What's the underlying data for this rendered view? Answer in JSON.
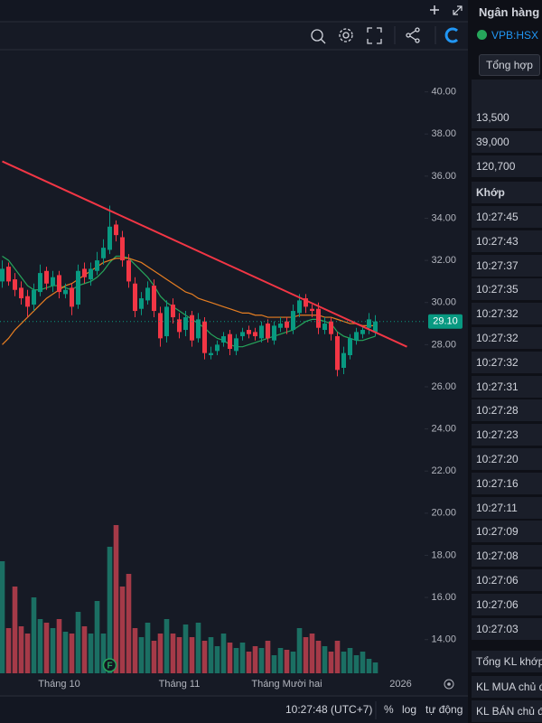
{
  "chart_data": {
    "type": "candlestick",
    "categories": [
      null,
      null,
      null,
      null,
      null,
      null,
      null,
      null,
      null,
      "Tháng 10",
      null,
      null,
      null,
      null,
      null,
      null,
      null,
      null,
      null,
      null,
      null,
      null,
      null,
      null,
      null,
      null,
      null,
      null,
      "Tháng 11",
      null,
      null,
      null,
      null,
      null,
      null,
      null,
      null,
      null,
      null,
      null,
      null,
      null,
      null,
      null,
      null,
      "Tháng Mười hai",
      null,
      null,
      null,
      null,
      null,
      null,
      null,
      null,
      null,
      null,
      null,
      null,
      null,
      null,
      null,
      null,
      null,
      "2026",
      null,
      null
    ],
    "open": [
      31.0,
      31.7,
      31.1,
      30.7,
      30.3,
      29.9,
      30.5,
      31.5,
      30.8,
      31.3,
      30.4,
      30.7,
      29.9,
      31.6,
      31.1,
      31.5,
      32.1,
      32.5,
      33.7,
      33.1,
      32.0,
      30.9,
      29.7,
      30.1,
      30.8,
      29.5,
      28.4,
      29.9,
      29.2,
      28.7,
      29.4,
      28.3,
      29.1,
      27.5,
      27.7,
      28.1,
      28.5,
      27.7,
      28.4,
      28.7,
      28.6,
      28.3,
      29.0,
      28.2,
      28.8,
      29.1,
      28.7,
      29.5,
      30.2,
      29.7,
      29.7,
      28.7,
      29.1,
      28.4,
      26.9,
      27.5,
      28.2,
      28.5,
      28.8,
      28.6,
      null,
      null,
      null,
      null,
      null,
      null
    ],
    "high": [
      32.0,
      31.9,
      31.4,
      31.0,
      30.6,
      30.9,
      31.8,
      31.7,
      31.5,
      31.5,
      30.9,
      30.9,
      31.8,
      31.9,
      31.9,
      32.4,
      33.0,
      34.6,
      33.9,
      33.4,
      32.3,
      31.2,
      30.5,
      31.0,
      31.1,
      29.8,
      30.1,
      30.2,
      29.5,
      29.6,
      29.6,
      29.5,
      29.3,
      27.9,
      28.2,
      28.6,
      28.7,
      28.5,
      28.8,
      28.9,
      28.8,
      29.1,
      29.2,
      29.1,
      29.3,
      29.3,
      29.9,
      30.4,
      30.4,
      29.9,
      30.0,
      29.3,
      29.3,
      28.6,
      27.9,
      28.5,
      28.8,
      28.9,
      29.5,
      29.4,
      null,
      null,
      null,
      null,
      null,
      null
    ],
    "low": [
      30.7,
      30.8,
      30.3,
      29.9,
      29.3,
      29.6,
      30.3,
      30.6,
      30.5,
      30.2,
      30.2,
      29.4,
      29.7,
      30.9,
      30.8,
      31.3,
      31.8,
      32.3,
      32.9,
      31.7,
      30.7,
      29.3,
      29.4,
      29.9,
      29.3,
      27.9,
      28.1,
      29.0,
      28.3,
      28.4,
      27.9,
      28.1,
      27.3,
      27.3,
      27.5,
      27.9,
      27.5,
      27.5,
      28.2,
      28.3,
      28.2,
      28.1,
      28.1,
      28.0,
      28.6,
      28.5,
      28.5,
      29.3,
      29.5,
      29.3,
      28.5,
      28.5,
      28.2,
      26.5,
      26.6,
      27.3,
      28.0,
      28.3,
      28.5,
      28.4,
      null,
      null,
      null,
      null,
      null,
      null
    ],
    "close": [
      31.6,
      31.0,
      30.6,
      30.2,
      29.8,
      30.6,
      31.4,
      30.9,
      31.2,
      30.5,
      30.6,
      29.8,
      31.5,
      31.2,
      31.6,
      32.0,
      32.6,
      33.6,
      33.2,
      32.0,
      31.0,
      29.6,
      30.2,
      30.7,
      29.6,
      28.3,
      29.8,
      29.3,
      28.6,
      29.3,
      28.2,
      29.2,
      27.6,
      27.6,
      28.0,
      28.4,
      27.8,
      28.3,
      28.6,
      28.5,
      28.4,
      28.9,
      28.3,
      28.9,
      29.0,
      28.8,
      29.6,
      30.1,
      29.8,
      29.6,
      28.8,
      29.0,
      28.5,
      26.8,
      27.6,
      28.3,
      28.6,
      28.7,
      29.2,
      29.1,
      null,
      null,
      null,
      null,
      null,
      null
    ],
    "volume": [
      62,
      25,
      48,
      26,
      22,
      42,
      30,
      28,
      25,
      30,
      23,
      22,
      34,
      26,
      22,
      40,
      22,
      70,
      82,
      48,
      55,
      25,
      20,
      28,
      18,
      22,
      30,
      22,
      20,
      27,
      20,
      28,
      18,
      20,
      15,
      22,
      17,
      14,
      17,
      12,
      15,
      14,
      18,
      10,
      14,
      13,
      12,
      25,
      20,
      22,
      18,
      15,
      12,
      18,
      12,
      14,
      10,
      12,
      8,
      6,
      null,
      null,
      null,
      null,
      null,
      null
    ],
    "volume_lim": [
      0,
      100
    ],
    "up_color": "#089981",
    "down_color": "#f23645",
    "volume_up_color": "#1b6f63",
    "volume_down_color": "#a53a48",
    "lines": [
      {
        "color": "#26a65b",
        "values": [
          32.2,
          32.0,
          31.6,
          31.2,
          30.8,
          30.6,
          30.6,
          30.7,
          30.8,
          30.8,
          30.7,
          30.6,
          30.8,
          30.9,
          31.0,
          31.2,
          31.5,
          31.9,
          32.2,
          32.2,
          32.1,
          31.8,
          31.5,
          31.2,
          30.8,
          30.3,
          30.0,
          29.8,
          29.6,
          29.4,
          29.2,
          29.0,
          28.8,
          28.5,
          28.3,
          28.2,
          28.0,
          27.9,
          27.9,
          28.0,
          28.1,
          28.2,
          28.3,
          28.4,
          28.5,
          28.6,
          28.7,
          28.9,
          29.1,
          29.2,
          29.2,
          29.1,
          29.0,
          28.6,
          28.4,
          28.3,
          28.2,
          28.2,
          28.3,
          28.4,
          null,
          null,
          null,
          null,
          null,
          null
        ]
      },
      {
        "color": "#e67e22",
        "values": [
          28.0,
          28.3,
          28.7,
          29.0,
          29.3,
          29.6,
          29.9,
          30.2,
          30.4,
          30.6,
          30.8,
          30.9,
          31.1,
          31.3,
          31.5,
          31.7,
          31.9,
          32.0,
          32.1,
          32.1,
          32.1,
          32.0,
          31.9,
          31.7,
          31.5,
          31.3,
          31.1,
          30.9,
          30.7,
          30.5,
          30.4,
          30.2,
          30.1,
          30.0,
          29.9,
          29.8,
          29.7,
          29.6,
          29.5,
          29.5,
          29.4,
          29.4,
          29.3,
          29.3,
          29.3,
          29.3,
          29.3,
          29.4,
          29.4,
          29.4,
          29.4,
          29.3,
          29.3,
          29.2,
          29.1,
          29.0,
          29.0,
          28.9,
          28.9,
          28.9,
          null,
          null,
          null,
          null,
          null,
          null
        ]
      }
    ],
    "trendline": {
      "color": "#f23645",
      "x": [
        0,
        64
      ],
      "values": [
        36.7,
        27.9
      ]
    },
    "last_price": {
      "value": 29.1,
      "label": "29.10"
    },
    "markers": [
      {
        "index": 17,
        "label": "F"
      }
    ],
    "ylim": [
      12.4,
      42.0
    ],
    "yticks": [
      {
        "value": 14,
        "label": "14.00"
      },
      {
        "value": 16,
        "label": "16.00"
      },
      {
        "value": 18,
        "label": "18.00"
      },
      {
        "value": 20,
        "label": "20.00"
      },
      {
        "value": 22,
        "label": "22.00"
      },
      {
        "value": 24,
        "label": "24.00"
      },
      {
        "value": 26,
        "label": "26.00"
      },
      {
        "value": 28,
        "label": "28.00"
      },
      {
        "value": 30,
        "label": "30.00"
      },
      {
        "value": 32,
        "label": "32.00"
      },
      {
        "value": 34,
        "label": "34.00"
      },
      {
        "value": 36,
        "label": "36.00"
      },
      {
        "value": 38,
        "label": "38.00"
      },
      {
        "value": 40,
        "label": "40.00"
      }
    ],
    "grid": false
  },
  "status_bar": {
    "time": "10:27:48 (UTC+7)",
    "percent": "%",
    "log": "log",
    "auto": "tự động"
  },
  "side_panel": {
    "title": "Ngân hàng",
    "symbol": "VPB:HSX",
    "tab": "Tổng hợp",
    "stats": [
      "13,500",
      "39,000",
      "120,700"
    ],
    "matched_header": "Khớp",
    "times": [
      "10:27:45",
      "10:27:43",
      "10:27:37",
      "10:27:35",
      "10:27:32",
      "10:27:32",
      "10:27:32",
      "10:27:31",
      "10:27:28",
      "10:27:23",
      "10:27:20",
      "10:27:16",
      "10:27:11",
      "10:27:09",
      "10:27:08",
      "10:27:06",
      "10:27:06",
      "10:27:03"
    ],
    "footer": [
      "Tổng KL khớp",
      "KL MUA chủ đ",
      "KL BÁN chủ đ"
    ]
  }
}
